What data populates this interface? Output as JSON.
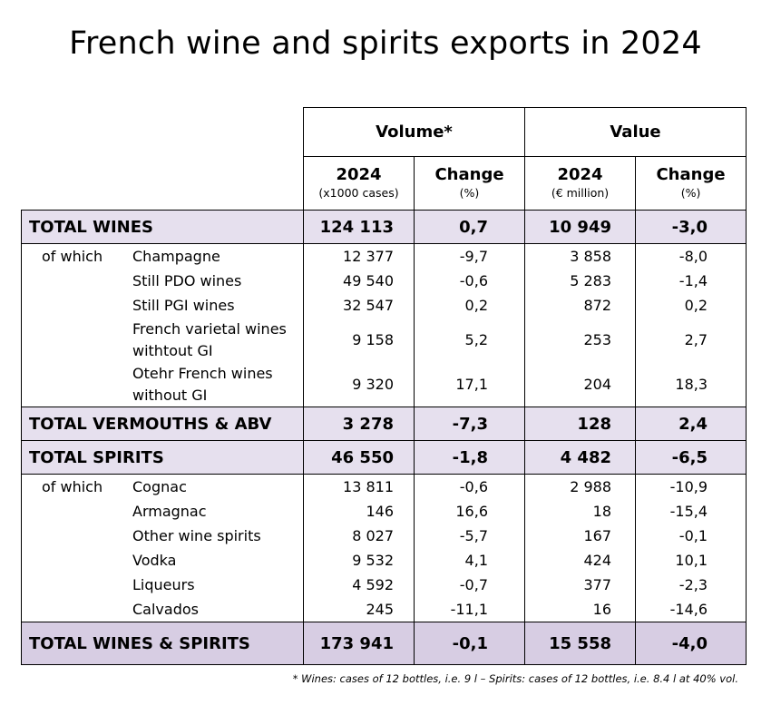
{
  "title": "French wine and spirits exports in 2024",
  "header": {
    "volume": "Volume*",
    "value": "Value",
    "vol_year": "2024",
    "vol_unit": "(x1000 cases)",
    "vol_change": "Change",
    "vol_change_unit": "(%)",
    "val_year": "2024",
    "val_unit": "(€ million)",
    "val_change": "Change",
    "val_change_unit": "(%)"
  },
  "of_which": "of which",
  "total_wines": {
    "label": "TOTAL WINES",
    "volume": "124 113",
    "vol_change": "0,7",
    "value": "10 949",
    "val_change": "-3,0"
  },
  "wines": [
    {
      "label": "Champagne",
      "volume": "12 377",
      "vol_change": "-9,7",
      "value": "3 858",
      "val_change": "-8,0"
    },
    {
      "label": "Still PDO wines",
      "volume": "49 540",
      "vol_change": "-0,6",
      "value": "5 283",
      "val_change": "-1,4"
    },
    {
      "label": "Still PGI wines",
      "volume": "32 547",
      "vol_change": "0,2",
      "value": "872",
      "val_change": "0,2"
    },
    {
      "label_line1": "French varietal wines",
      "label_line2": "withtout GI",
      "volume": "9 158",
      "vol_change": "5,2",
      "value": "253",
      "val_change": "2,7"
    },
    {
      "label_line1": "Otehr French wines",
      "label_line2": "without GI",
      "volume": "9 320",
      "vol_change": "17,1",
      "value": "204",
      "val_change": "18,3"
    }
  ],
  "total_vermouths": {
    "label": "TOTAL VERMOUTHS & ABV",
    "volume": "3 278",
    "vol_change": "-7,3",
    "value": "128",
    "val_change": "2,4"
  },
  "total_spirits": {
    "label": "TOTAL SPIRITS",
    "volume": "46 550",
    "vol_change": "-1,8",
    "value": "4 482",
    "val_change": "-6,5"
  },
  "spirits": [
    {
      "label": "Cognac",
      "volume": "13 811",
      "vol_change": "-0,6",
      "value": "2 988",
      "val_change": "-10,9"
    },
    {
      "label": "Armagnac",
      "volume": "146",
      "vol_change": "16,6",
      "value": "18",
      "val_change": "-15,4"
    },
    {
      "label": "Other wine spirits",
      "volume": "8 027",
      "vol_change": "-5,7",
      "value": "167",
      "val_change": "-0,1"
    },
    {
      "label": "Vodka",
      "volume": "9 532",
      "vol_change": "4,1",
      "value": "424",
      "val_change": "10,1"
    },
    {
      "label": "Liqueurs",
      "volume": "4 592",
      "vol_change": "-0,7",
      "value": "377",
      "val_change": "-2,3"
    },
    {
      "label": "Calvados",
      "volume": "245",
      "vol_change": "-11,1",
      "value": "16",
      "val_change": "-14,6"
    }
  ],
  "total_all": {
    "label": "TOTAL WINES & SPIRITS",
    "volume": "173 941",
    "vol_change": "-0,1",
    "value": "15 558",
    "val_change": "-4,0"
  },
  "footnote_star": "*",
  "footnote": "Wines: cases of 12 bottles, i.e. 9 l – Spirits: cases of 12 bottles, i.e. 8.4 l at 40% vol.",
  "colors": {
    "total_row": "#e6e0ee",
    "grand_total_row": "#d7cde3"
  }
}
